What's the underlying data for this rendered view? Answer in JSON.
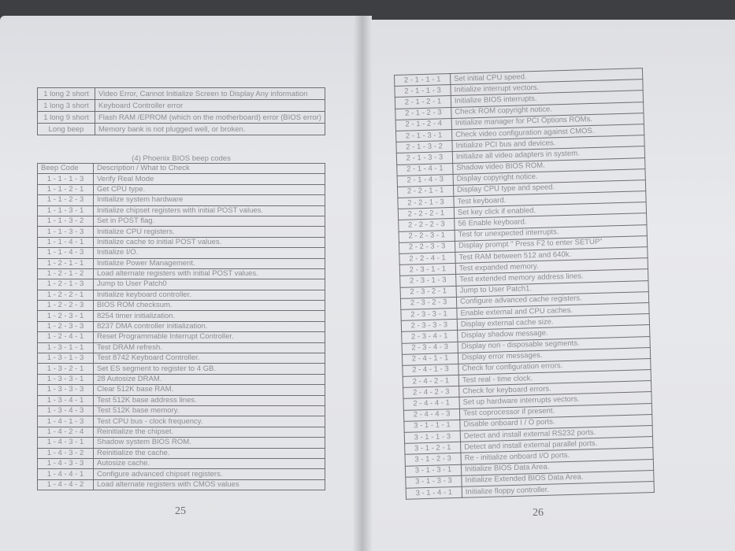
{
  "left_page": {
    "page_number": "25",
    "award_table": [
      {
        "code": "1 long 2 short",
        "desc": "Video Error, Cannot Initialize Screen to Display Any information"
      },
      {
        "code": "1 long 3 short",
        "desc": "Keyboard Controller error"
      },
      {
        "code": "1 long 9 short",
        "desc": "Flash RAM /EPROM (which on the motherboard) error (BIOS error)"
      },
      {
        "code": "Long beep",
        "desc": "Memory bank is not plugged well, or broken."
      }
    ],
    "phoenix_caption": "(4) Phoenix BIOS beep codes",
    "phoenix_header": {
      "code": "Beep Code",
      "desc": "Description / What to Check"
    },
    "phoenix_rows": [
      {
        "code": "1 - 1 - 1 - 3",
        "desc": "Verify Real Mode"
      },
      {
        "code": "1 - 1 - 2 - 1",
        "desc": "Get CPU type."
      },
      {
        "code": "1 - 1 - 2 - 3",
        "desc": "Initialize system hardware"
      },
      {
        "code": "1 - 1 - 3 - 1",
        "desc": "Initialize chipset registers with initial POST values."
      },
      {
        "code": "1 - 1 - 3 - 2",
        "desc": "Set in POST flag."
      },
      {
        "code": "1 - 1 - 3 - 3",
        "desc": "Initialize CPU registers."
      },
      {
        "code": "1 - 1 - 4 - 1",
        "desc": "Initialize cache to initial POST values."
      },
      {
        "code": "1 - 1 - 4 - 3",
        "desc": "Initialize I/O."
      },
      {
        "code": "1 - 2 - 1 - 1",
        "desc": "Initialize Power Management."
      },
      {
        "code": "1 - 2 - 1 - 2",
        "desc": "Load alternate registers with initial POST values."
      },
      {
        "code": "1 - 2 - 1 - 3",
        "desc": "Jump to User Patch0"
      },
      {
        "code": "1 - 2 - 2 - 1",
        "desc": "Initialize keyboard controller."
      },
      {
        "code": "1 - 2 - 2 - 3",
        "desc": "BIOS ROM checksum."
      },
      {
        "code": "1 - 2 - 3 - 1",
        "desc": "8254 timer initialization."
      },
      {
        "code": "1 - 2 - 3 - 3",
        "desc": "8237 DMA controller initialization."
      },
      {
        "code": "1 - 2 - 4 - 1",
        "desc": "Reset Programmable Interrupt Controller."
      },
      {
        "code": "1 - 3 - 1 - 1",
        "desc": "Test DRAM refresh."
      },
      {
        "code": "1 - 3 - 1 - 3",
        "desc": "Test 8742 Keyboard Controller."
      },
      {
        "code": "1 - 3 - 2 - 1",
        "desc": "Set ES segment to register to 4 GB."
      },
      {
        "code": "1 - 3 - 3 - 1",
        "desc": "28 Autosize DRAM."
      },
      {
        "code": "1 - 3 - 3 - 3",
        "desc": "Clear 512K base RAM."
      },
      {
        "code": "1 - 3 - 4 - 1",
        "desc": "Test 512K base address lines."
      },
      {
        "code": "1 - 3 - 4 - 3",
        "desc": "Test 512K base memory."
      },
      {
        "code": "1 - 4 - 1 - 3",
        "desc": "Test CPU bus - clock frequency."
      },
      {
        "code": "1 - 4 - 2 - 4",
        "desc": "Reinitialize the chipset."
      },
      {
        "code": "1 - 4 - 3 - 1",
        "desc": "Shadow system BIOS ROM."
      },
      {
        "code": "1 - 4 - 3 - 2",
        "desc": "Reinitialize the cache."
      },
      {
        "code": "1 - 4 - 3 - 3",
        "desc": "Autosize cache."
      },
      {
        "code": "1 - 4 - 4 - 1",
        "desc": "Configure advanced chipset registers."
      },
      {
        "code": "1 - 4 - 4 - 2",
        "desc": "Load alternate registers with CMOS values"
      }
    ]
  },
  "right_page": {
    "page_number": "26",
    "phoenix_rows": [
      {
        "code": "2 - 1 - 1 - 1",
        "desc": "Set initial CPU speed."
      },
      {
        "code": "2 - 1 - 1 - 3",
        "desc": "Initialize interrupt vectors."
      },
      {
        "code": "2 - 1 - 2 - 1",
        "desc": "Initialize BIOS interrupts."
      },
      {
        "code": "2 - 1 - 2 - 3",
        "desc": "Check ROM copyright notice."
      },
      {
        "code": "2 - 1 - 2 - 4",
        "desc": "Initialize manager for PCI Options ROMs."
      },
      {
        "code": "2 - 1 - 3 - 1",
        "desc": "Check video configuration against CMOS."
      },
      {
        "code": "2 - 1 - 3 - 2",
        "desc": "Initialize PCI bus and devices."
      },
      {
        "code": "2 - 1 - 3 - 3",
        "desc": "Initialize all video adapters in system."
      },
      {
        "code": "2 - 1 - 4 - 1",
        "desc": "Shadow video BIOS ROM."
      },
      {
        "code": "2 - 1 - 4 - 3",
        "desc": "Display copyright notice."
      },
      {
        "code": "2 - 2 - 1 - 1",
        "desc": "Display CPU type and speed."
      },
      {
        "code": "2 - 2 - 1 - 3",
        "desc": "Test keyboard."
      },
      {
        "code": "2 - 2 - 2 - 1",
        "desc": "Set key click if enabled."
      },
      {
        "code": "2 - 2 - 2 - 3",
        "desc": "56 Enable keyboard."
      },
      {
        "code": "2 - 2 - 3 - 1",
        "desc": "Test for unexpected interrupts."
      },
      {
        "code": "2 - 2 - 3 - 3",
        "desc": "Display prompt \" Press F2 to enter SETUP\""
      },
      {
        "code": "2 - 2 - 4 - 1",
        "desc": "Test RAM between 512 and 640k."
      },
      {
        "code": "2 - 3 - 1 - 1",
        "desc": "Test expanded memory."
      },
      {
        "code": "2 - 3 - 1 - 3",
        "desc": "Test extended memory address lines."
      },
      {
        "code": "2 - 3 - 2 - 1",
        "desc": "Jump to User Patch1."
      },
      {
        "code": "2 - 3 - 2 - 3",
        "desc": "Configure advanced cache registers."
      },
      {
        "code": "2 - 3 - 3 - 1",
        "desc": "Enable external and CPU caches."
      },
      {
        "code": "2 - 3 - 3 - 3",
        "desc": "Display external cache size."
      },
      {
        "code": "2 - 3 - 4 - 1",
        "desc": "Display shadow message."
      },
      {
        "code": "2 - 3 - 4 - 3",
        "desc": "Display non - disposable segments."
      },
      {
        "code": "2 - 4 - 1 - 1",
        "desc": "Display error messages."
      },
      {
        "code": "2 - 4 - 1 - 3",
        "desc": "Check for configuration errors."
      },
      {
        "code": "2 - 4 - 2 - 1",
        "desc": "Test real - time clock."
      },
      {
        "code": "2 - 4 - 2 - 3",
        "desc": "Check for keyboard errors."
      },
      {
        "code": "2 - 4 - 4 - 1",
        "desc": "Set up hardware interrupts vectors."
      },
      {
        "code": "2 - 4 - 4 - 3",
        "desc": "Test coprocessor if present."
      },
      {
        "code": "3 - 1 - 1 - 1",
        "desc": "Disable onboard I / O ports."
      },
      {
        "code": "3 - 1 - 1 - 3",
        "desc": "Detect and install external RS232 ports."
      },
      {
        "code": "3 - 1 - 2 - 1",
        "desc": "Detect and install external parallel ports."
      },
      {
        "code": "3 - 1 - 2 - 3",
        "desc": "Re - initialize onboard I/O ports."
      },
      {
        "code": "3 - 1 - 3 - 1",
        "desc": "Initialize BIOS Data Area."
      },
      {
        "code": "3 - 1 - 3 - 3",
        "desc": "Initialize Extended BIOS Data Area."
      },
      {
        "code": "3 - 1 - 4 - 1",
        "desc": "Initialize floppy controller."
      }
    ]
  }
}
